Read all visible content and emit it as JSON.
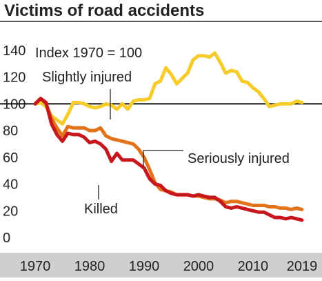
{
  "chart_data": {
    "type": "line",
    "title": "Victims of road accidents",
    "subtitle": "",
    "index_label": "Index 1970 = 100",
    "xlabel": "",
    "ylabel": "",
    "xlim": [
      1970,
      2019
    ],
    "ylim": [
      0,
      140
    ],
    "y_ticks": [
      0,
      20,
      40,
      60,
      80,
      100,
      120,
      140
    ],
    "x_ticks": [
      1970,
      1980,
      1990,
      2000,
      2010,
      2019
    ],
    "reference_line": 100,
    "grid": false,
    "legend": "inline labels",
    "colors": {
      "slightly_injured": "#f5cc2a",
      "seriously_injured": "#e2731a",
      "killed": "#c8161d",
      "x_axis_band": "#cfcfcf",
      "text": "#222222",
      "top_rule": "#222222",
      "reference_line": "#111111",
      "label_line": "#222222"
    },
    "series": [
      {
        "name": "Slightly injured",
        "key": "slightly_injured",
        "x": [
          1970,
          1971,
          1972,
          1973,
          1974,
          1975,
          1976,
          1977,
          1978,
          1979,
          1980,
          1981,
          1982,
          1983,
          1984,
          1985,
          1986,
          1987,
          1988,
          1989,
          1990,
          1991,
          1992,
          1993,
          1994,
          1995,
          1996,
          1997,
          1998,
          1999,
          2000,
          2001,
          2002,
          2003,
          2004,
          2005,
          2006,
          2007,
          2008,
          2009,
          2010,
          2011,
          2012,
          2013,
          2014,
          2015,
          2016,
          2017,
          2018,
          2019
        ],
        "values": [
          100,
          101,
          98,
          91,
          88,
          85,
          92,
          101,
          101,
          100,
          98,
          97,
          98,
          100,
          99,
          96,
          100,
          96,
          102,
          103,
          103,
          104,
          115,
          117,
          127,
          122,
          115,
          119,
          123,
          133,
          136,
          136,
          135,
          138,
          131,
          123,
          125,
          124,
          117,
          116,
          112,
          109,
          104,
          98,
          99,
          100,
          100,
          100,
          102,
          101
        ]
      },
      {
        "name": "Seriously injured",
        "key": "seriously_injured",
        "x": [
          1970,
          1971,
          1972,
          1973,
          1974,
          1975,
          1976,
          1977,
          1978,
          1979,
          1980,
          1981,
          1982,
          1983,
          1984,
          1985,
          1986,
          1987,
          1988,
          1989,
          1990,
          1991,
          1992,
          1993,
          1994,
          1995,
          1996,
          1997,
          1998,
          1999,
          2000,
          2001,
          2002,
          2003,
          2004,
          2005,
          2006,
          2007,
          2008,
          2009,
          2010,
          2011,
          2012,
          2013,
          2014,
          2015,
          2016,
          2017,
          2018,
          2019
        ],
        "values": [
          100,
          104,
          100,
          89,
          82,
          76,
          83,
          82,
          82,
          82,
          80,
          80,
          82,
          76,
          74,
          73,
          72,
          71,
          70,
          66,
          60,
          51,
          41,
          36,
          35,
          34,
          32,
          32,
          32,
          31,
          31,
          30,
          29,
          29,
          28,
          26,
          27,
          27,
          26,
          25,
          24,
          24,
          24,
          23,
          23,
          22,
          22,
          21,
          22,
          21
        ]
      },
      {
        "name": "Killed",
        "key": "killed",
        "x": [
          1970,
          1971,
          1972,
          1973,
          1974,
          1975,
          1976,
          1977,
          1978,
          1979,
          1980,
          1981,
          1982,
          1983,
          1984,
          1985,
          1986,
          1987,
          1988,
          1989,
          1990,
          1991,
          1992,
          1993,
          1994,
          1995,
          1996,
          1997,
          1998,
          1999,
          2000,
          2001,
          2002,
          2003,
          2004,
          2005,
          2006,
          2007,
          2008,
          2009,
          2010,
          2011,
          2012,
          2013,
          2014,
          2015,
          2016,
          2017,
          2018,
          2019
        ],
        "values": [
          100,
          104,
          101,
          85,
          77,
          72,
          78,
          77,
          77,
          75,
          71,
          72,
          70,
          66,
          57,
          63,
          58,
          58,
          58,
          55,
          52,
          44,
          40,
          39,
          35,
          33,
          32,
          32,
          32,
          31,
          32,
          31,
          30,
          30,
          27,
          23,
          22,
          23,
          22,
          21,
          20,
          19,
          19,
          17,
          15,
          15,
          14,
          15,
          14,
          13
        ]
      }
    ]
  }
}
